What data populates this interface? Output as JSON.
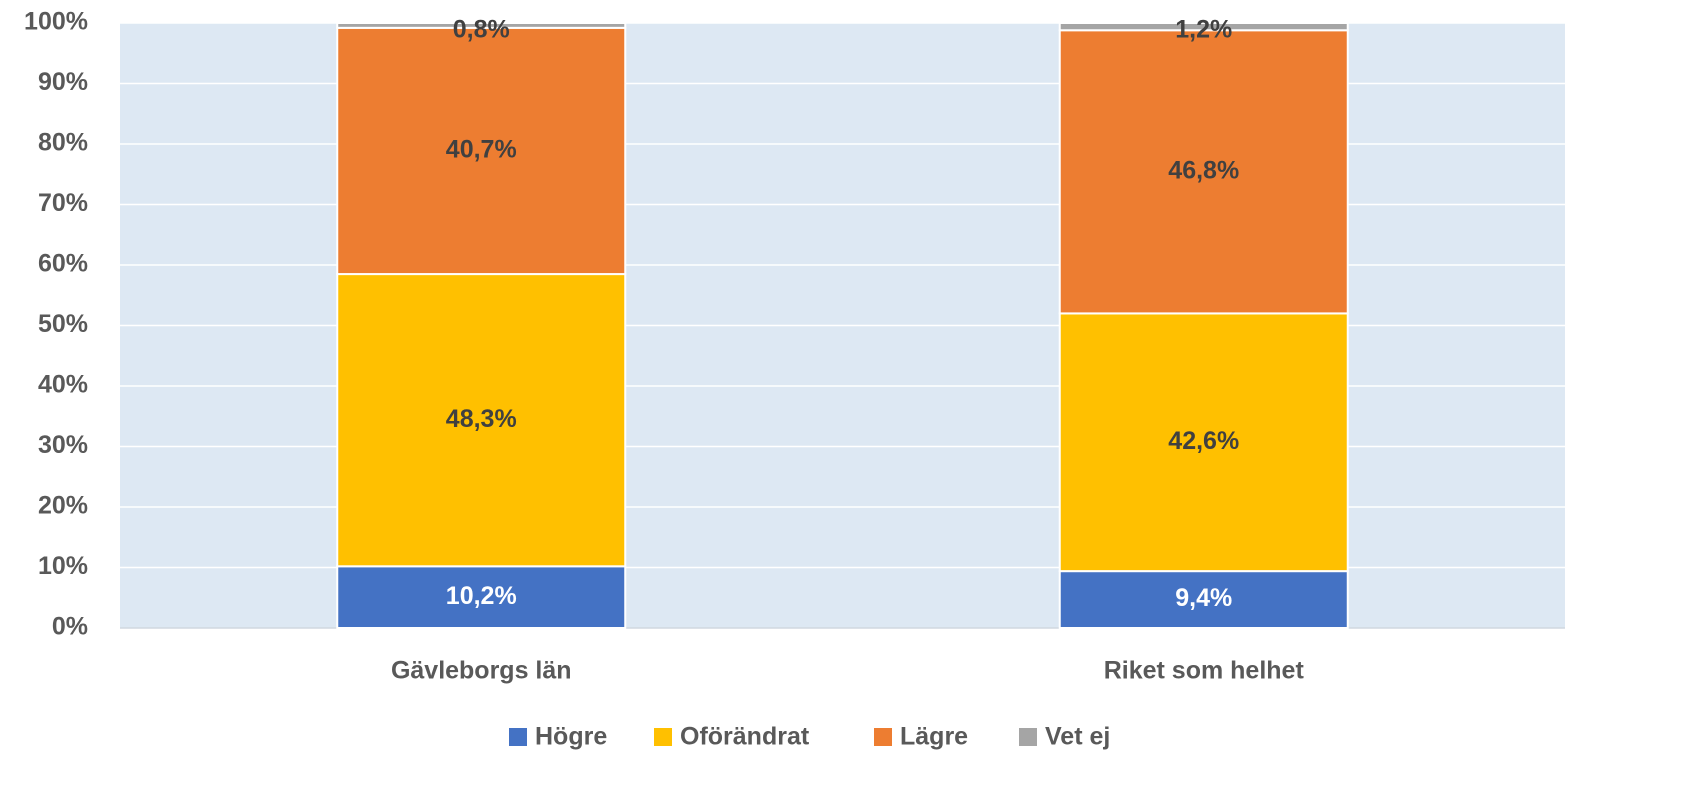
{
  "chart_data": {
    "type": "stacked_bar",
    "categories": [
      "Gävleborgs län",
      "Riket som helhet"
    ],
    "series": [
      {
        "name": "Högre",
        "color": "#4472c4",
        "values": [
          10.2,
          9.4
        ],
        "value_labels": [
          "10,2%",
          "9,4%"
        ]
      },
      {
        "name": "Oförändrat",
        "color": "#ffc000",
        "values": [
          48.3,
          42.6
        ],
        "value_labels": [
          "48,3%",
          "42,6%"
        ]
      },
      {
        "name": "Lägre",
        "color": "#ed7d31",
        "values": [
          40.7,
          46.8
        ],
        "value_labels": [
          "40,7%",
          "46,8%"
        ]
      },
      {
        "name": "Vet ej",
        "color": "#a5a5a5",
        "values": [
          0.8,
          1.2
        ],
        "value_labels": [
          "0,8%",
          "1,2%"
        ]
      }
    ],
    "ylim": [
      0,
      100
    ],
    "yticks": [
      {
        "value": 0,
        "label": "0%"
      },
      {
        "value": 10,
        "label": "10%"
      },
      {
        "value": 20,
        "label": "20%"
      },
      {
        "value": 30,
        "label": "30%"
      },
      {
        "value": 40,
        "label": "40%"
      },
      {
        "value": 50,
        "label": "50%"
      },
      {
        "value": 60,
        "label": "60%"
      },
      {
        "value": 70,
        "label": "70%"
      },
      {
        "value": 80,
        "label": "80%"
      },
      {
        "value": 90,
        "label": "90%"
      },
      {
        "value": 100,
        "label": "100%"
      }
    ],
    "grid": true,
    "legend": "bottom"
  }
}
